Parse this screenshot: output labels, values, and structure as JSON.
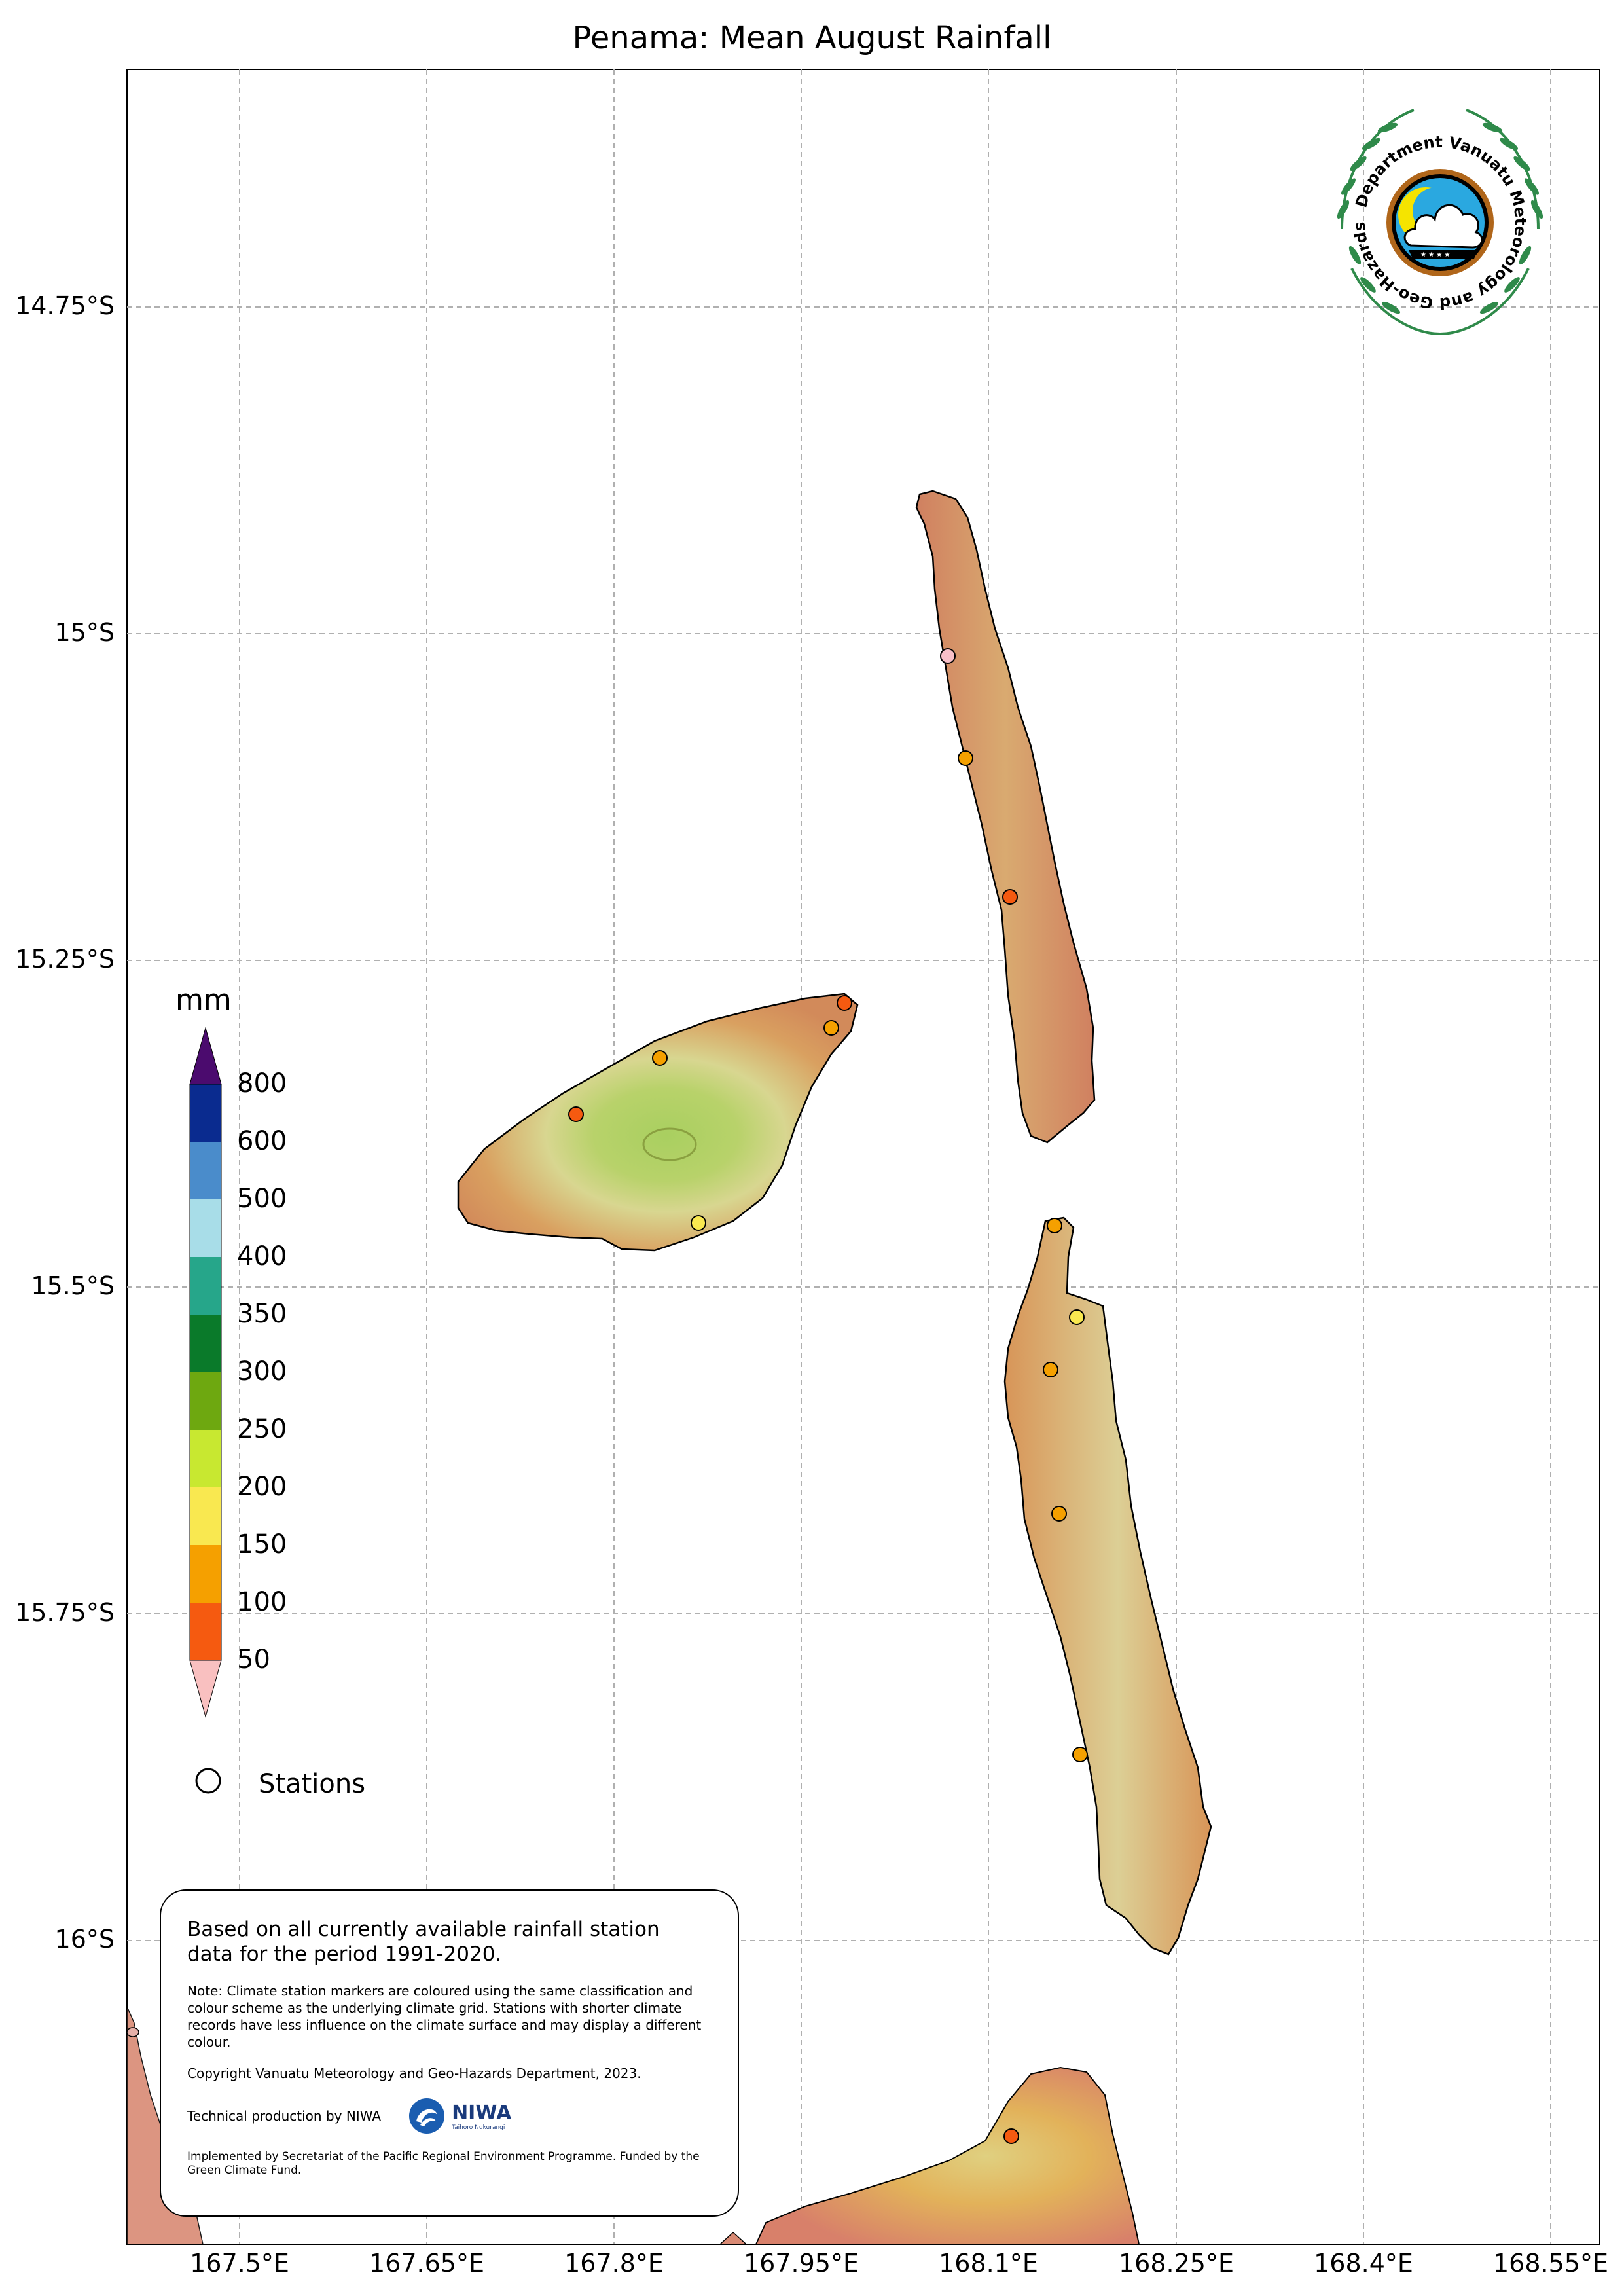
{
  "title": "Penama: Mean August Rainfall",
  "axes": {
    "lat_labels": [
      "14.75°S",
      "15°S",
      "15.25°S",
      "15.5°S",
      "15.75°S",
      "16°S"
    ],
    "lon_labels": [
      "167.5°E",
      "167.65°E",
      "167.8°E",
      "167.95°E",
      "168.1°E",
      "168.25°E",
      "168.4°E",
      "168.55°E"
    ]
  },
  "legend": {
    "unit": "mm",
    "levels": [
      "800",
      "600",
      "500",
      "400",
      "350",
      "300",
      "250",
      "200",
      "150",
      "100",
      "50"
    ],
    "colors": [
      "#4b0b6e",
      "#0a2b8f",
      "#4a8ccb",
      "#a8dde8",
      "#26a68a",
      "#0a7a2a",
      "#6ea810",
      "#c8e830",
      "#f9e850",
      "#f5a000",
      "#f55a10",
      "#f9c0c0"
    ],
    "stations_label": "Stations"
  },
  "info": {
    "main": "Based on all currently available rainfall station data for the period 1991-2020.",
    "note": "Note: Climate station markers are coloured using the same classification and colour scheme as the underlying climate grid. Stations with shorter climate records have less influence on the climate surface and may display a different colour.",
    "copyright": "Copyright Vanuatu Meteorology and Geo-Hazards Department, 2023.",
    "technical": "Technical production by NIWA",
    "niwa_name": "NIWA",
    "niwa_tagline": "Taihoro Nukurangi",
    "implemented": "Implemented by Secretariat of the Pacific Regional Environment Programme. Funded by the Green Climate Fund."
  },
  "logo": {
    "text": "Department Vanuatu Meteorology and Geo-Hazards"
  },
  "stations": [
    {
      "color": "#f9c0c8"
    },
    {
      "color": "#f5a000"
    },
    {
      "color": "#f55a10"
    },
    {
      "color": "#f55a10"
    },
    {
      "color": "#f5a000"
    },
    {
      "color": "#f5a000"
    },
    {
      "color": "#f55a10"
    },
    {
      "color": "#f9e850"
    },
    {
      "color": "#f5a000"
    },
    {
      "color": "#f9e850"
    },
    {
      "color": "#f5a000"
    },
    {
      "color": "#f5a000"
    },
    {
      "color": "#f5a000"
    },
    {
      "color": "#f55a10"
    }
  ]
}
